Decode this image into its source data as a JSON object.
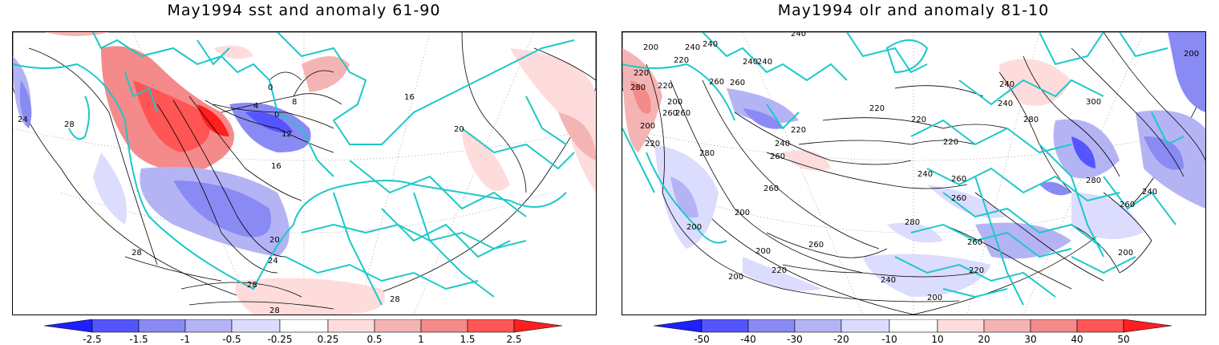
{
  "panels": [
    {
      "title": "May1994 sst and anomaly 61-90",
      "colorbar_labels": [
        "-2.5",
        "-1.5",
        "-1",
        "-0.5",
        "-0.25",
        "0.25",
        "0.5",
        "1",
        "1.5",
        "2.5"
      ],
      "contour_labels": [
        "24",
        "28",
        "0",
        "0",
        "4",
        "8",
        "12",
        "16",
        "16",
        "20",
        "20",
        "24",
        "28",
        "28",
        "28",
        "28"
      ]
    },
    {
      "title": "May1994 olr and anomaly 81-10",
      "colorbar_labels": [
        "-50",
        "-40",
        "-30",
        "-20",
        "-10",
        "10",
        "20",
        "30",
        "40",
        "50"
      ],
      "contour_labels": [
        "200",
        "240",
        "220",
        "220",
        "240",
        "240",
        "280",
        "260",
        "260",
        "200",
        "220",
        "240",
        "260",
        "240",
        "200",
        "220",
        "260",
        "200",
        "260",
        "280",
        "260",
        "200",
        "220",
        "240",
        "260",
        "220",
        "200",
        "200",
        "220",
        "280",
        "260",
        "300",
        "240",
        "220",
        "280",
        "260",
        "240",
        "220",
        "240",
        "220",
        "200",
        "240",
        "260",
        "200",
        "240",
        "280",
        "260",
        "200"
      ]
    }
  ],
  "colors": {
    "coastline": "#1ec8c8",
    "blue_scale": [
      "#1f1fff",
      "#5555ff",
      "#8a8af5",
      "#b4b4f5",
      "#dcdcff"
    ],
    "red_scale": [
      "#ffdcdc",
      "#f5b4b4",
      "#f58a8a",
      "#ff5555",
      "#ff1f1f"
    ],
    "contour": "#000000"
  }
}
